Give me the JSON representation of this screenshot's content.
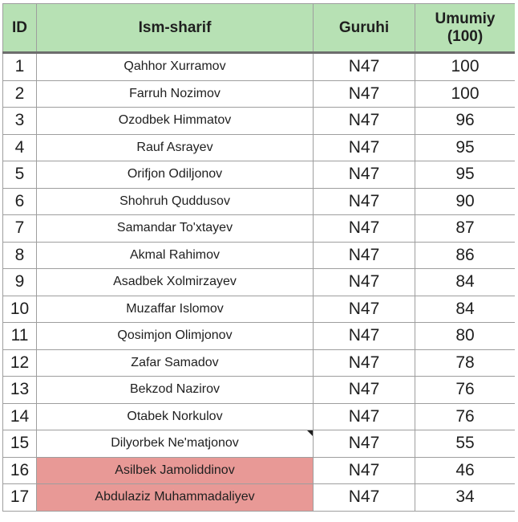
{
  "table": {
    "headers": {
      "id": "ID",
      "name": "Ism-sharif",
      "group": "Guruhi",
      "total_line1": "Umumiy",
      "total_line2": "(100)"
    },
    "colors": {
      "header_background": "#b7e1b4",
      "highlight_background": "#e89996"
    },
    "rows": [
      {
        "id": "1",
        "name": "Qahhor Xurramov",
        "group": "N47",
        "total": "100",
        "highlight": false,
        "note": false
      },
      {
        "id": "2",
        "name": "Farruh Nozimov",
        "group": "N47",
        "total": "100",
        "highlight": false,
        "note": false
      },
      {
        "id": "3",
        "name": "Ozodbek Himmatov",
        "group": "N47",
        "total": "96",
        "highlight": false,
        "note": false
      },
      {
        "id": "4",
        "name": "Rauf Asrayev",
        "group": "N47",
        "total": "95",
        "highlight": false,
        "note": false
      },
      {
        "id": "5",
        "name": "Orifjon Odiljonov",
        "group": "N47",
        "total": "95",
        "highlight": false,
        "note": false
      },
      {
        "id": "6",
        "name": "Shohruh Quddusov",
        "group": "N47",
        "total": "90",
        "highlight": false,
        "note": false
      },
      {
        "id": "7",
        "name": "Samandar To'xtayev",
        "group": "N47",
        "total": "87",
        "highlight": false,
        "note": false
      },
      {
        "id": "8",
        "name": "Akmal Rahimov",
        "group": "N47",
        "total": "86",
        "highlight": false,
        "note": false
      },
      {
        "id": "9",
        "name": "Asadbek Xolmirzayev",
        "group": "N47",
        "total": "84",
        "highlight": false,
        "note": false
      },
      {
        "id": "10",
        "name": "Muzaffar Islomov",
        "group": "N47",
        "total": "84",
        "highlight": false,
        "note": false
      },
      {
        "id": "11",
        "name": "Qosimjon Olimjonov",
        "group": "N47",
        "total": "80",
        "highlight": false,
        "note": false
      },
      {
        "id": "12",
        "name": "Zafar Samadov",
        "group": "N47",
        "total": "78",
        "highlight": false,
        "note": false
      },
      {
        "id": "13",
        "name": "Bekzod Nazirov",
        "group": "N47",
        "total": "76",
        "highlight": false,
        "note": false
      },
      {
        "id": "14",
        "name": "Otabek Norkulov",
        "group": "N47",
        "total": "76",
        "highlight": false,
        "note": false
      },
      {
        "id": "15",
        "name": "Dilyorbek Ne'matjonov",
        "group": "N47",
        "total": "55",
        "highlight": false,
        "note": true
      },
      {
        "id": "16",
        "name": "Asilbek Jamoliddinov",
        "group": "N47",
        "total": "46",
        "highlight": true,
        "note": false
      },
      {
        "id": "17",
        "name": "Abdulaziz Muhammadaliyev",
        "group": "N47",
        "total": "34",
        "highlight": true,
        "note": false
      }
    ]
  }
}
